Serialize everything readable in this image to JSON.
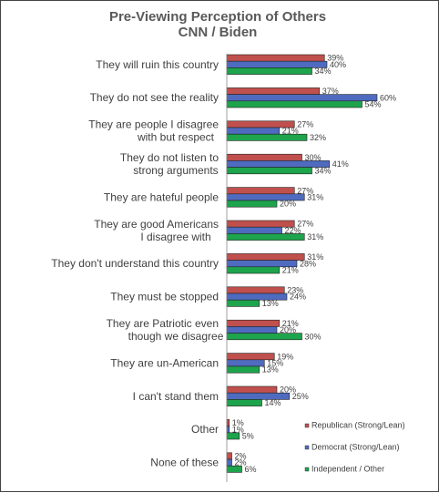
{
  "chart_data": {
    "type": "bar",
    "orientation": "horizontal",
    "title": "Pre-Viewing Perception of Others",
    "subtitle": "CNN / Biden",
    "categories": [
      "They will ruin this country",
      "They do not see the reality",
      "They are people I disagree with but respect",
      "They do not listen to strong arguments",
      "They are hateful people",
      "They are good Americans I disagree with",
      "They don't understand this country",
      "They must be stopped",
      "They are Patriotic even though we disagree",
      "They are un-American",
      "I can't stand them",
      "Other",
      "None of these"
    ],
    "series": [
      {
        "name": "Republican (Strong/Lean)",
        "color": "#c0504d",
        "values": [
          39,
          37,
          27,
          30,
          27,
          27,
          31,
          23,
          21,
          19,
          20,
          1,
          2
        ]
      },
      {
        "name": "Democrat (Strong/Lean)",
        "color": "#4f6bbf",
        "values": [
          40,
          60,
          21,
          41,
          31,
          22,
          28,
          24,
          20,
          15,
          25,
          1,
          2
        ]
      },
      {
        "name": "Independent / Other",
        "color": "#1ea44c",
        "values": [
          34,
          54,
          32,
          34,
          20,
          31,
          21,
          13,
          30,
          13,
          14,
          5,
          6
        ]
      }
    ],
    "value_suffix": "%",
    "xlim": [
      0,
      100
    ],
    "legend_position": "bottom-right",
    "grid": false
  }
}
